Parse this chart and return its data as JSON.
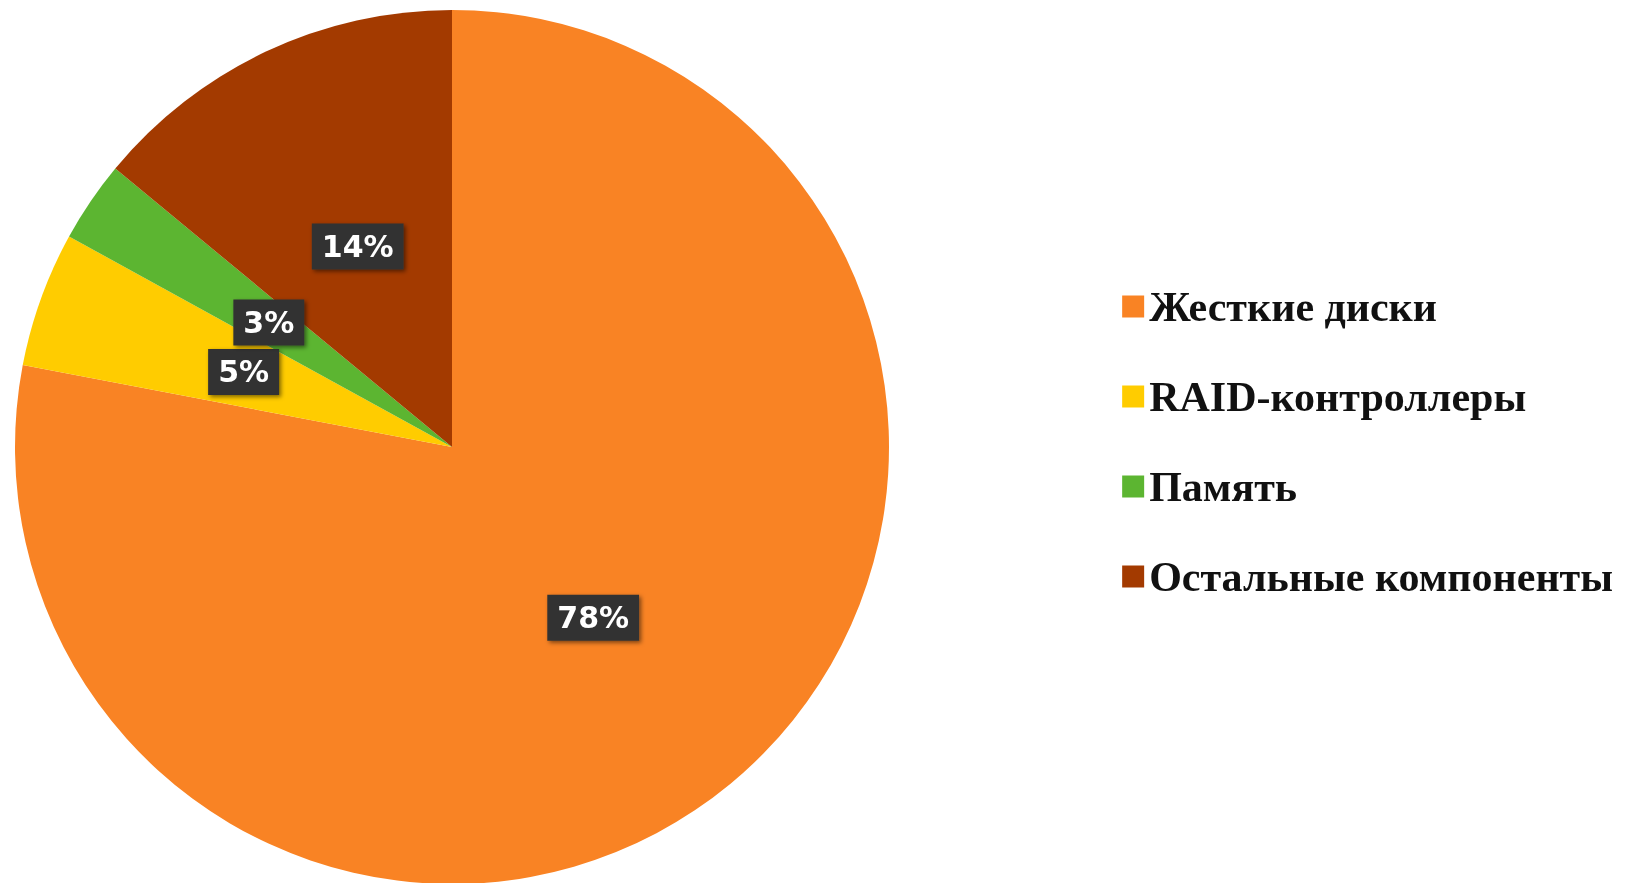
{
  "chart_data": {
    "type": "pie",
    "categories": [
      "Жесткие диски",
      "RAID-контроллеры",
      "Память",
      "Остальные компоненты"
    ],
    "values": [
      78,
      5,
      3,
      14
    ],
    "colors": [
      "#f98324",
      "#ffcc00",
      "#5cb531",
      "#a33a00"
    ],
    "value_labels": [
      "78%",
      "5%",
      "3%",
      "14%"
    ],
    "legend": "right"
  }
}
